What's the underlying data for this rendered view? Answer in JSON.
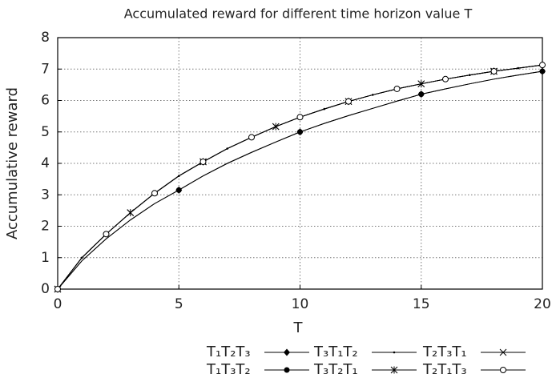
{
  "chart_data": {
    "type": "line",
    "title": "Accumulated reward for different time horizon value T",
    "x_label": "T",
    "y_label": "Accumulative reward",
    "x": [
      0,
      1,
      2,
      3,
      4,
      5,
      6,
      7,
      8,
      9,
      10,
      11,
      12,
      13,
      14,
      15,
      16,
      17,
      18,
      19,
      20
    ],
    "xlim": [
      0,
      20
    ],
    "xticks": [
      0,
      5,
      10,
      15,
      20
    ],
    "ylim": [
      0,
      8
    ],
    "yticks": [
      0,
      1,
      2,
      3,
      4,
      5,
      6,
      7,
      8
    ],
    "grid": true,
    "legend": "bottom",
    "series": [
      {
        "name": "T₁T₂T₃",
        "color": "#000000",
        "marker": "diamond",
        "marker_every": 5,
        "values": [
          0,
          0.9,
          1.6,
          2.2,
          2.72,
          3.15,
          3.6,
          4.0,
          4.35,
          4.68,
          5.0,
          5.27,
          5.52,
          5.75,
          5.98,
          6.2,
          6.37,
          6.53,
          6.68,
          6.81,
          6.93
        ]
      },
      {
        "name": "T₁T₃T₂",
        "color": "#000000",
        "marker": "circle-filled",
        "marker_every": 5,
        "values": [
          0,
          0.9,
          1.6,
          2.2,
          2.72,
          3.15,
          3.6,
          4.0,
          4.35,
          4.68,
          5.0,
          5.27,
          5.52,
          5.75,
          5.98,
          6.2,
          6.37,
          6.53,
          6.68,
          6.81,
          6.93
        ]
      },
      {
        "name": "T₃T₁T₂",
        "color": "#000000",
        "marker": "dot",
        "marker_every": 1,
        "values": [
          0,
          1.0,
          1.75,
          2.43,
          3.05,
          3.6,
          4.05,
          4.47,
          4.83,
          5.17,
          5.47,
          5.73,
          5.97,
          6.18,
          6.37,
          6.53,
          6.68,
          6.81,
          6.93,
          7.03,
          7.13
        ]
      },
      {
        "name": "T₃T₂T₁",
        "color": "#000000",
        "marker": "star",
        "marker_every": 3,
        "values": [
          0,
          1.0,
          1.75,
          2.43,
          3.05,
          3.6,
          4.05,
          4.47,
          4.83,
          5.17,
          5.47,
          5.73,
          5.97,
          6.18,
          6.37,
          6.53,
          6.68,
          6.81,
          6.93,
          7.03,
          7.13
        ]
      },
      {
        "name": "T₂T₃T₁",
        "color": "#000000",
        "marker": "cross",
        "marker_every": 3,
        "values": [
          0,
          1.0,
          1.75,
          2.43,
          3.05,
          3.6,
          4.05,
          4.47,
          4.83,
          5.17,
          5.47,
          5.73,
          5.97,
          6.18,
          6.37,
          6.53,
          6.68,
          6.81,
          6.93,
          7.03,
          7.13
        ]
      },
      {
        "name": "T₂T₁T₃",
        "color": "#000000",
        "marker": "circle-open",
        "marker_every": 2,
        "values": [
          0,
          1.0,
          1.75,
          2.43,
          3.05,
          3.6,
          4.05,
          4.47,
          4.83,
          5.17,
          5.47,
          5.73,
          5.97,
          6.18,
          6.37,
          6.53,
          6.68,
          6.81,
          6.93,
          7.03,
          7.13
        ]
      }
    ]
  }
}
